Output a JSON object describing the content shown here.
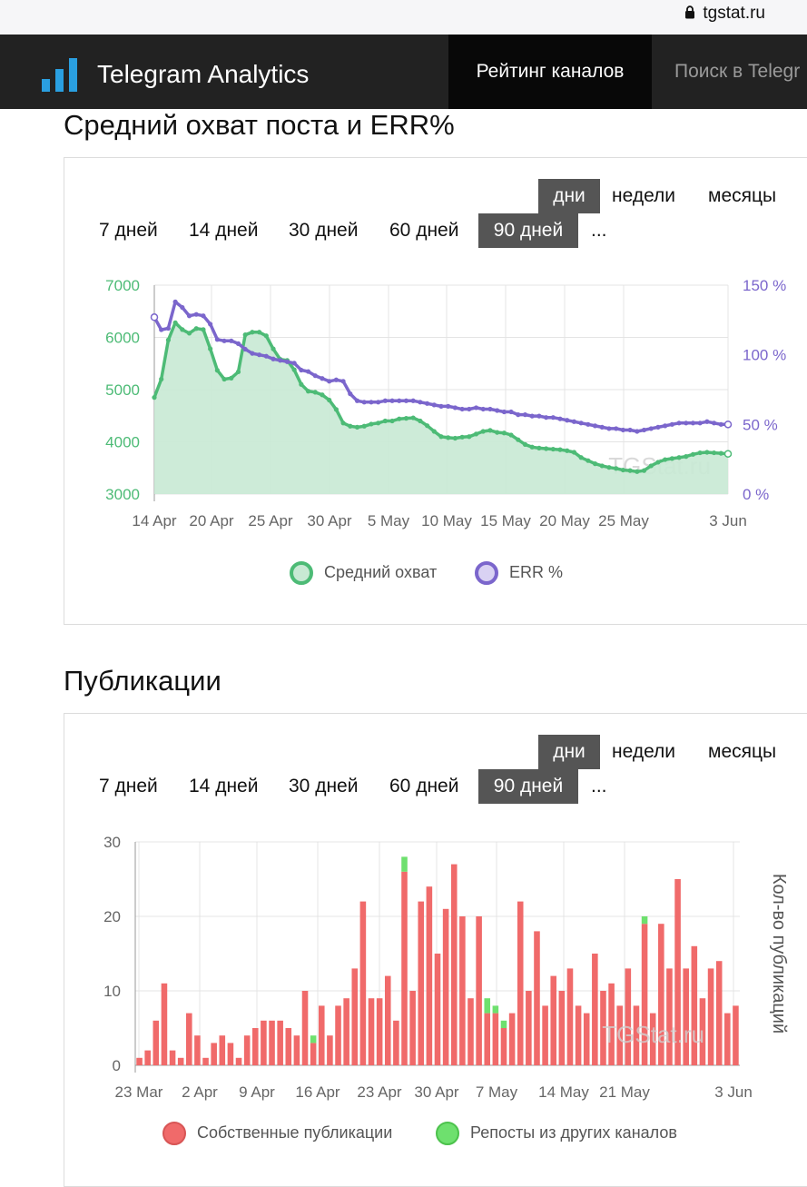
{
  "browser": {
    "url": "tgstat.ru"
  },
  "nav": {
    "brand": "Telegram Analytics",
    "active_item": "Рейтинг каналов",
    "next_item": "Поиск в Telegr"
  },
  "colors": {
    "reach": "#4dbb76",
    "reach_fill": "#c8e9d4",
    "err": "#7b66cc",
    "own": "#f06a6a",
    "reposts": "#6ee06e"
  },
  "section1": {
    "title": "Средний охват поста и ERR%",
    "periods": [
      "дни",
      "недели",
      "месяцы"
    ],
    "active_period": "дни",
    "ranges": [
      "7 дней",
      "14 дней",
      "30 дней",
      "60 дней",
      "90 дней",
      "..."
    ],
    "active_range": "90 дней",
    "watermark": "TGStat.ru"
  },
  "section2": {
    "title": "Публикации",
    "periods": [
      "дни",
      "недели",
      "месяцы"
    ],
    "active_period": "дни",
    "ranges": [
      "7 дней",
      "14 дней",
      "30 дней",
      "60 дней",
      "90 дней",
      "..."
    ],
    "active_range": "90 дней",
    "watermark": "TGStat.ru"
  },
  "chart_data": [
    {
      "type": "line",
      "x_ticks": [
        "14 Apr",
        "20 Apr",
        "25 Apr",
        "30 Apr",
        "5 May",
        "10 May",
        "15 May",
        "20 May",
        "25 May",
        "3 Jun"
      ],
      "y_left": {
        "ticks": [
          "7000",
          "6000",
          "5000",
          "4000",
          "3000"
        ],
        "range": [
          3000,
          7000
        ]
      },
      "y_right": {
        "ticks": [
          "150 %",
          "100 %",
          "50 %",
          "0 %"
        ],
        "range": [
          0,
          150
        ]
      },
      "grid": true,
      "legend_position": "bottom",
      "series": [
        {
          "name": "Средний охват",
          "axis": "left",
          "area": true,
          "values": [
            4850,
            5200,
            5950,
            6280,
            6150,
            6080,
            6170,
            6150,
            5780,
            5370,
            5200,
            5220,
            5340,
            6050,
            6100,
            6100,
            6030,
            5780,
            5580,
            5560,
            5380,
            5100,
            4970,
            4950,
            4900,
            4800,
            4620,
            4360,
            4300,
            4280,
            4300,
            4340,
            4360,
            4400,
            4400,
            4440,
            4450,
            4460,
            4400,
            4310,
            4200,
            4100,
            4080,
            4070,
            4090,
            4100,
            4150,
            4200,
            4220,
            4180,
            4170,
            4130,
            4040,
            3950,
            3900,
            3880,
            3870,
            3860,
            3850,
            3830,
            3800,
            3700,
            3640,
            3580,
            3540,
            3510,
            3490,
            3460,
            3450,
            3430,
            3450,
            3540,
            3610,
            3660,
            3680,
            3700,
            3720,
            3760,
            3790,
            3800,
            3790,
            3780,
            3770
          ]
        },
        {
          "name": "ERR %",
          "axis": "right",
          "values": [
            127,
            118,
            119,
            138,
            134,
            128,
            129,
            128,
            122,
            111,
            110,
            110,
            108,
            104,
            101,
            100,
            99,
            97,
            96,
            95,
            94,
            89,
            88,
            85,
            83,
            81,
            82,
            81,
            72,
            67,
            66,
            66,
            66,
            67,
            67,
            67,
            67,
            67,
            66,
            65,
            64,
            63,
            63,
            62,
            61,
            61,
            62,
            61,
            61,
            60,
            59,
            59,
            57,
            57,
            56,
            56,
            55,
            55,
            54,
            53,
            52,
            51,
            50,
            49,
            48,
            47,
            47,
            46,
            46,
            45,
            46,
            47,
            48,
            49,
            50,
            51,
            51,
            51,
            51,
            52,
            51,
            50,
            50
          ]
        }
      ]
    },
    {
      "type": "bar",
      "stacked": true,
      "x_ticks": [
        "23 Mar",
        "2 Apr",
        "9 Apr",
        "16 Apr",
        "23 Apr",
        "30 Apr",
        "7 May",
        "14 May",
        "21 May",
        "3 Jun"
      ],
      "ylim": [
        0,
        30
      ],
      "y_ticks": [
        "30",
        "20",
        "10",
        "0"
      ],
      "ylabel": "Кол-во публикаций",
      "grid": true,
      "legend_position": "bottom",
      "series": [
        {
          "name": "Собственные публикации",
          "values": [
            1,
            2,
            6,
            11,
            2,
            1,
            7,
            4,
            1,
            3,
            4,
            3,
            1,
            4,
            5,
            6,
            6,
            6,
            5,
            4,
            10,
            3,
            8,
            4,
            8,
            9,
            13,
            22,
            9,
            9,
            12,
            6,
            26,
            10,
            22,
            24,
            15,
            21,
            27,
            20,
            9,
            20,
            7,
            7,
            5,
            7,
            22,
            10,
            18,
            8,
            12,
            10,
            13,
            8,
            7,
            15,
            10,
            11,
            8,
            13,
            8,
            19,
            7,
            19,
            13,
            25,
            13,
            16,
            9,
            13,
            14,
            7,
            8
          ]
        },
        {
          "name": "Репосты из других каналов",
          "values": [
            0,
            0,
            0,
            0,
            0,
            0,
            0,
            0,
            0,
            0,
            0,
            0,
            0,
            0,
            0,
            0,
            0,
            0,
            0,
            0,
            0,
            1,
            0,
            0,
            0,
            0,
            0,
            0,
            0,
            0,
            0,
            0,
            2,
            0,
            0,
            0,
            0,
            0,
            0,
            0,
            0,
            0,
            2,
            1,
            1,
            0,
            0,
            0,
            0,
            0,
            0,
            0,
            0,
            0,
            0,
            0,
            0,
            0,
            0,
            0,
            0,
            1,
            0,
            0,
            0,
            0,
            0,
            0,
            0,
            0,
            0,
            0,
            0
          ]
        }
      ]
    }
  ]
}
